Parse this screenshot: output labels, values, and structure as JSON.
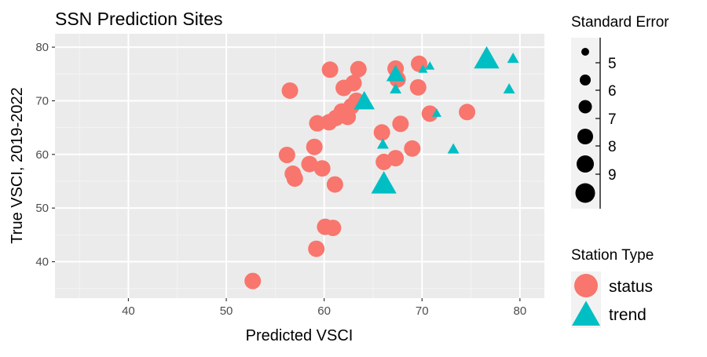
{
  "chart_data": {
    "type": "scatter",
    "title": "SSN Prediction Sites",
    "xlabel": "Predicted VSCI",
    "ylabel": "True VSCI, 2019-2022",
    "xlim": [
      32.5,
      82.5
    ],
    "ylim": [
      33.2,
      82.5
    ],
    "x_ticks": [
      40,
      50,
      60,
      70,
      80
    ],
    "y_ticks": [
      40,
      50,
      60,
      70,
      80
    ],
    "grid": true,
    "legend_size": {
      "title": "Standard Error",
      "values": [
        5,
        6,
        7,
        8,
        9
      ]
    },
    "legend_type": {
      "title": "Station Type",
      "entries": [
        {
          "label": "status",
          "shape": "circle",
          "color": "#F8766D"
        },
        {
          "label": "trend",
          "shape": "triangle",
          "color": "#00BFC4"
        }
      ]
    },
    "series": [
      {
        "name": "status",
        "shape": "circle",
        "color": "#F8766D",
        "points": [
          {
            "x": 52.7,
            "y": 36.4,
            "se": 8.0
          },
          {
            "x": 59.2,
            "y": 42.4,
            "se": 8.0
          },
          {
            "x": 60.1,
            "y": 46.5,
            "se": 8.0
          },
          {
            "x": 60.9,
            "y": 46.3,
            "se": 8.0
          },
          {
            "x": 56.8,
            "y": 56.4,
            "se": 8.0
          },
          {
            "x": 57.0,
            "y": 55.5,
            "se": 8.0
          },
          {
            "x": 61.1,
            "y": 54.4,
            "se": 8.0
          },
          {
            "x": 56.2,
            "y": 59.9,
            "se": 8.0
          },
          {
            "x": 58.5,
            "y": 58.2,
            "se": 8.0
          },
          {
            "x": 59.8,
            "y": 57.4,
            "se": 8.0
          },
          {
            "x": 59.0,
            "y": 61.4,
            "se": 8.0
          },
          {
            "x": 59.3,
            "y": 65.8,
            "se": 8.0
          },
          {
            "x": 60.5,
            "y": 66.0,
            "se": 8.0
          },
          {
            "x": 61.2,
            "y": 66.8,
            "se": 8.0
          },
          {
            "x": 61.8,
            "y": 68.0,
            "se": 8.0
          },
          {
            "x": 62.4,
            "y": 67.0,
            "se": 8.0
          },
          {
            "x": 62.8,
            "y": 69.0,
            "se": 8.0
          },
          {
            "x": 63.3,
            "y": 70.0,
            "se": 8.0
          },
          {
            "x": 56.5,
            "y": 71.9,
            "se": 8.0
          },
          {
            "x": 62.0,
            "y": 72.4,
            "se": 8.0
          },
          {
            "x": 63.0,
            "y": 73.3,
            "se": 8.0
          },
          {
            "x": 60.6,
            "y": 75.8,
            "se": 8.0
          },
          {
            "x": 63.5,
            "y": 75.9,
            "se": 8.0
          },
          {
            "x": 65.9,
            "y": 64.1,
            "se": 8.0
          },
          {
            "x": 66.1,
            "y": 58.6,
            "se": 8.0
          },
          {
            "x": 67.3,
            "y": 59.3,
            "se": 8.0
          },
          {
            "x": 67.8,
            "y": 65.7,
            "se": 8.0
          },
          {
            "x": 67.3,
            "y": 76.0,
            "se": 8.0
          },
          {
            "x": 67.5,
            "y": 74.0,
            "se": 8.0
          },
          {
            "x": 69.0,
            "y": 61.1,
            "se": 8.0
          },
          {
            "x": 69.6,
            "y": 72.5,
            "se": 8.0
          },
          {
            "x": 69.7,
            "y": 76.9,
            "se": 8.0
          },
          {
            "x": 70.8,
            "y": 67.6,
            "se": 8.0
          },
          {
            "x": 74.6,
            "y": 67.9,
            "se": 8.0
          }
        ]
      },
      {
        "name": "trend",
        "shape": "triangle",
        "color": "#00BFC4",
        "points": [
          {
            "x": 66.1,
            "y": 54.3,
            "se": 8.5
          },
          {
            "x": 66.0,
            "y": 61.8,
            "se": 5.5
          },
          {
            "x": 64.1,
            "y": 69.7,
            "se": 7.5
          },
          {
            "x": 67.3,
            "y": 72.1,
            "se": 5.5
          },
          {
            "x": 67.3,
            "y": 74.8,
            "se": 7.0
          },
          {
            "x": 70.1,
            "y": 75.8,
            "se": 5.0
          },
          {
            "x": 70.8,
            "y": 76.4,
            "se": 5.0
          },
          {
            "x": 71.5,
            "y": 67.6,
            "se": 5.0
          },
          {
            "x": 73.2,
            "y": 60.9,
            "se": 5.5
          },
          {
            "x": 76.6,
            "y": 77.6,
            "se": 8.5
          },
          {
            "x": 78.9,
            "y": 72.1,
            "se": 5.5
          },
          {
            "x": 79.3,
            "y": 77.8,
            "se": 5.5
          }
        ]
      }
    ]
  }
}
